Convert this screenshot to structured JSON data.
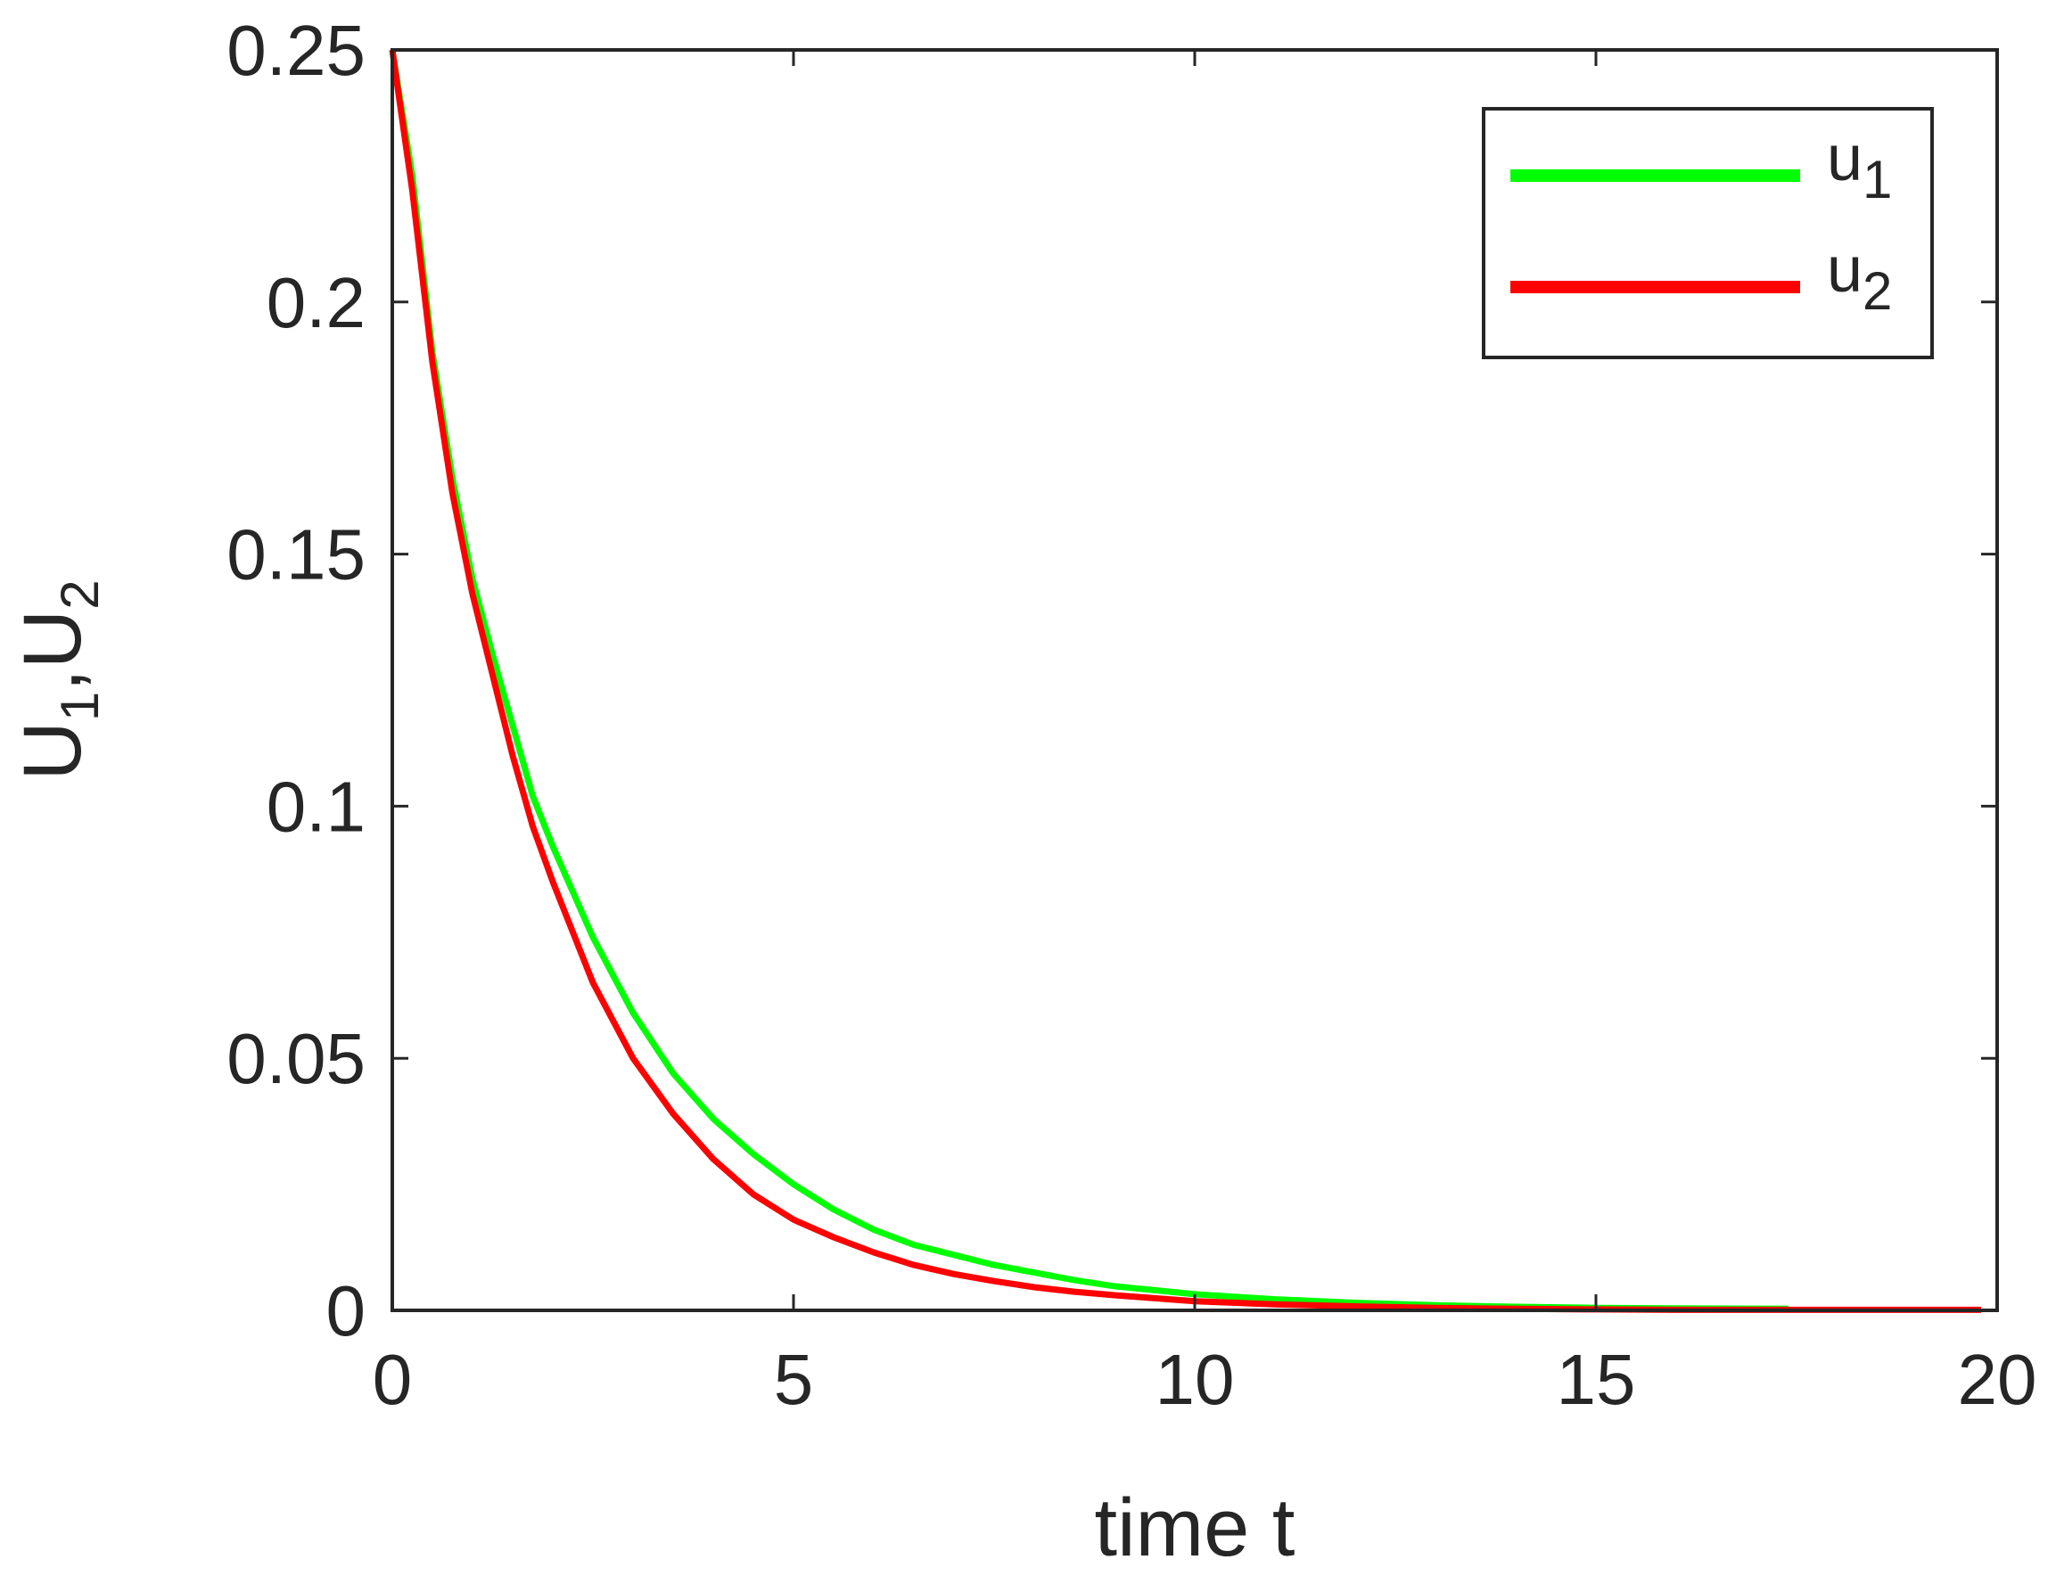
{
  "chart_data": {
    "type": "line",
    "title": "",
    "xlabel": "time t",
    "ylabel": {
      "base1": "U",
      "sub1": "1",
      "sep": ",",
      "base2": "U",
      "sub2": "2"
    },
    "xlim": [
      0,
      20
    ],
    "ylim": [
      0,
      0.25
    ],
    "xticks": [
      "0",
      "5",
      "10",
      "15",
      "20"
    ],
    "yticks": [
      "0",
      "0.05",
      "0.1",
      "0.15",
      "0.2",
      "0.25"
    ],
    "grid": false,
    "legend": "top-right",
    "series": [
      {
        "name": {
          "base": "u",
          "sub": "1"
        },
        "color": "#00ff00",
        "x": [
          0,
          0.25,
          0.5,
          0.75,
          1,
          1.25,
          1.5,
          1.75,
          2,
          2.5,
          3,
          3.5,
          4,
          4.5,
          5,
          5.5,
          6,
          6.5,
          7,
          7.5,
          8,
          8.5,
          9,
          10,
          11,
          12,
          13,
          14,
          15,
          16,
          17.4
        ],
        "y": [
          0.25,
          0.225,
          0.19,
          0.165,
          0.145,
          0.13,
          0.116,
          0.102,
          0.092,
          0.074,
          0.059,
          0.047,
          0.038,
          0.031,
          0.025,
          0.02,
          0.016,
          0.013,
          0.011,
          0.009,
          0.0075,
          0.006,
          0.0048,
          0.0032,
          0.0022,
          0.0015,
          0.001,
          0.0007,
          0.0005,
          0.0004,
          0.0003
        ]
      },
      {
        "name": {
          "base": "u",
          "sub": "2"
        },
        "color": "#ff0000",
        "x": [
          0,
          0.25,
          0.5,
          0.75,
          1,
          1.25,
          1.5,
          1.75,
          2,
          2.5,
          3,
          3.5,
          4,
          4.5,
          5,
          5.5,
          6,
          6.5,
          7,
          7.5,
          8,
          8.5,
          9,
          10,
          11,
          12,
          13,
          14,
          15,
          16,
          17,
          18,
          19,
          19.8
        ],
        "y": [
          0.25,
          0.222,
          0.188,
          0.162,
          0.142,
          0.126,
          0.11,
          0.096,
          0.085,
          0.065,
          0.05,
          0.039,
          0.03,
          0.023,
          0.018,
          0.0145,
          0.0115,
          0.009,
          0.0072,
          0.0058,
          0.0046,
          0.0037,
          0.003,
          0.0018,
          0.0012,
          0.0008,
          0.0005,
          0.0003,
          0.0002,
          0.0001,
          0.0001,
          0.0001,
          0.0001,
          0.0001
        ]
      }
    ]
  }
}
